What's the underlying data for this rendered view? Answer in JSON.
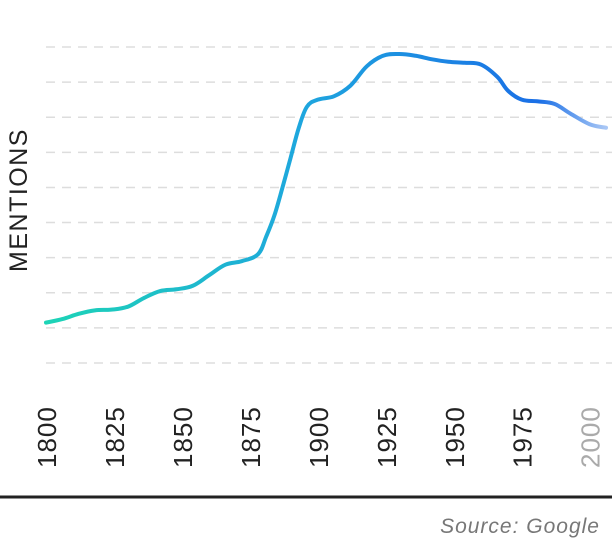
{
  "chart_data": {
    "type": "line",
    "title": "",
    "xlabel": "",
    "ylabel": "MENTIONS",
    "x_ticks": [
      "1800",
      "1825",
      "1850",
      "1875",
      "1900",
      "1925",
      "1950",
      "1975",
      "2000"
    ],
    "xlim": [
      1800,
      2006
    ],
    "ylim": [
      0,
      9
    ],
    "grid": true,
    "legend": "none",
    "series": [
      {
        "x": [
          1800,
          1806,
          1812,
          1818,
          1824,
          1830,
          1836,
          1842,
          1848,
          1854,
          1860,
          1866,
          1872,
          1878,
          1881,
          1884,
          1887,
          1890,
          1893,
          1896,
          1900,
          1906,
          1912,
          1918,
          1924,
          1930,
          1936,
          1942,
          1948,
          1954,
          1960,
          1966,
          1970,
          1975,
          1981,
          1987,
          1993,
          2000,
          2006
        ],
        "values": [
          1.15,
          1.25,
          1.4,
          1.5,
          1.52,
          1.6,
          1.85,
          2.05,
          2.1,
          2.2,
          2.5,
          2.8,
          2.9,
          3.1,
          3.6,
          4.2,
          5.0,
          5.85,
          6.7,
          7.3,
          7.5,
          7.6,
          7.9,
          8.45,
          8.75,
          8.8,
          8.75,
          8.65,
          8.58,
          8.55,
          8.5,
          8.15,
          7.75,
          7.5,
          7.45,
          7.38,
          7.1,
          6.8,
          6.7
        ]
      }
    ],
    "colors": {
      "line_start": "#1dd4b6",
      "line_end": "#1a6fe6",
      "fade": "#a9c7f5",
      "grid": "#dddddd"
    }
  },
  "source_text": "Source: Google"
}
